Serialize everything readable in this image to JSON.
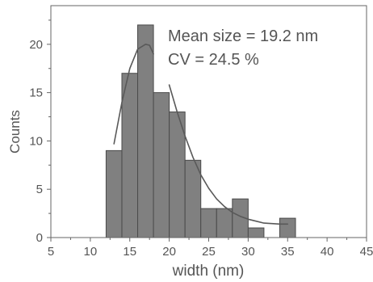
{
  "chart_data": {
    "type": "bar",
    "title": "",
    "xlabel": "width (nm)",
    "ylabel": "Counts",
    "xlim": [
      5,
      45
    ],
    "ylim": [
      0,
      24
    ],
    "xticks": [
      5,
      10,
      15,
      20,
      25,
      30,
      35,
      40,
      45
    ],
    "yticks": [
      0,
      5,
      10,
      15,
      20
    ],
    "bin_width": 2,
    "bins": [
      {
        "x0": 12,
        "x1": 14,
        "count": 9
      },
      {
        "x0": 14,
        "x1": 16,
        "count": 17
      },
      {
        "x0": 16,
        "x1": 18,
        "count": 22
      },
      {
        "x0": 18,
        "x1": 20,
        "count": 15
      },
      {
        "x0": 20,
        "x1": 22,
        "count": 13
      },
      {
        "x0": 22,
        "x1": 24,
        "count": 8
      },
      {
        "x0": 24,
        "x1": 26,
        "count": 3
      },
      {
        "x0": 26,
        "x1": 28,
        "count": 3
      },
      {
        "x0": 28,
        "x1": 30,
        "count": 4
      },
      {
        "x0": 30,
        "x1": 32,
        "count": 1
      },
      {
        "x0": 34,
        "x1": 36,
        "count": 2
      }
    ],
    "fit_curve": {
      "type": "lognormal",
      "segments": [
        {
          "x": [
            13,
            14,
            15,
            16,
            17,
            17.5,
            18
          ],
          "y": [
            9.7,
            14.0,
            17.5,
            19.5,
            20.0,
            19.9,
            19.0
          ]
        },
        {
          "x": [
            20,
            21,
            22,
            23,
            24,
            25,
            26,
            27,
            28,
            29,
            30,
            31,
            32,
            33,
            34,
            35
          ],
          "y": [
            15.8,
            13.0,
            10.5,
            8.3,
            6.5,
            5.1,
            4.0,
            3.2,
            2.6,
            2.2,
            1.9,
            1.7,
            1.5,
            1.45,
            1.4,
            1.4
          ]
        }
      ]
    },
    "annotations": [
      "Mean size = 19.2 nm",
      "CV = 24.5 %"
    ],
    "grid": false,
    "colors": {
      "bar_fill": "#808080",
      "bar_stroke": "#4a4a4a",
      "curve": "#595959",
      "axis": "#666666"
    }
  }
}
